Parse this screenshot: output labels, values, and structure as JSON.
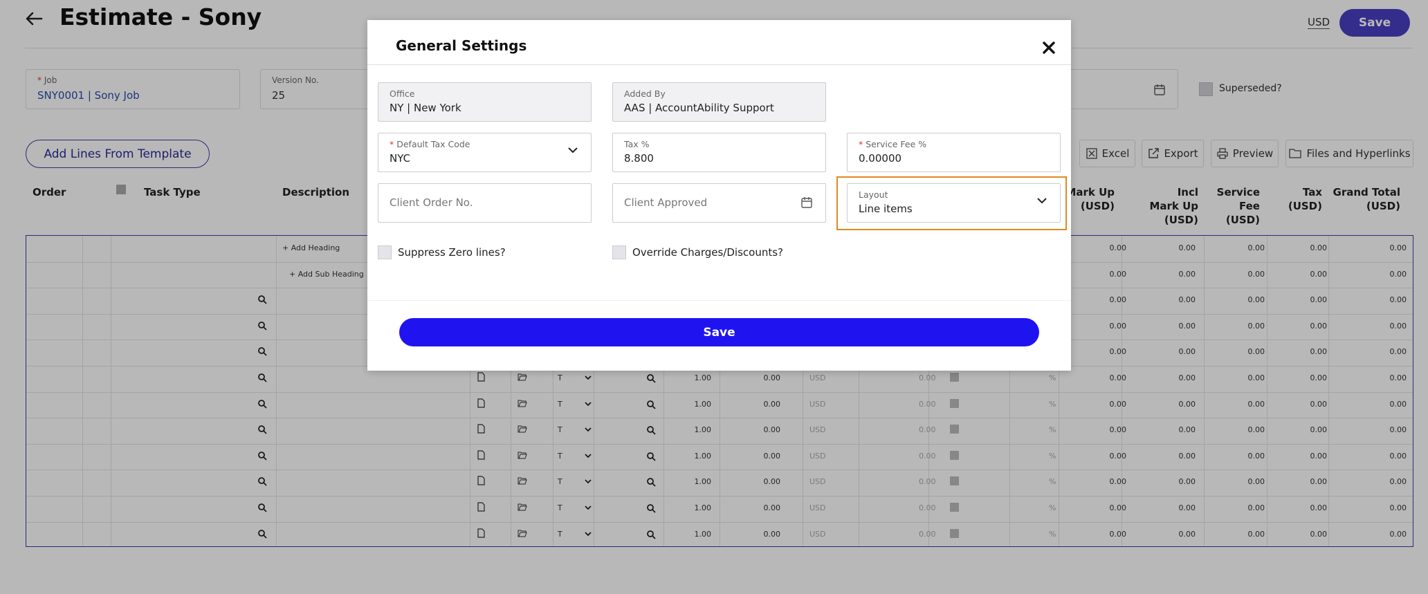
{
  "header": {
    "title": "Estimate - Sony",
    "currency": "USD",
    "save_label": "Save"
  },
  "form": {
    "job": {
      "label": "Job",
      "value": "SNY0001 | Sony Job"
    },
    "version": {
      "label": "Version No.",
      "value": "25"
    },
    "superseded_label": "Superseded?"
  },
  "toolbar": {
    "add_lines_label": "Add Lines From Template",
    "excel_label": "Excel",
    "export_label": "Export",
    "preview_label": "Preview",
    "files_label": "Files and Hyperlinks"
  },
  "columns": {
    "order": "Order",
    "task_type": "Task Type",
    "description": "Description",
    "markup_1": "Mark Up",
    "markup_2": "(USD)",
    "incl_1": "Incl",
    "incl_2": "Mark Up",
    "incl_3": "(USD)",
    "fee_1": "Service",
    "fee_2": "Fee",
    "fee_3": "(USD)",
    "tax_1": "Tax",
    "tax_2": "(USD)",
    "grand_1": "Grand Total",
    "grand_2": "(USD)"
  },
  "grid": {
    "add_heading": "+ Add Heading",
    "add_sub_heading": "+ Add Sub Heading",
    "zero": "0.00",
    "qty": "1.00",
    "type_code": "T",
    "currency": "USD",
    "percent": "%"
  },
  "modal": {
    "title": "General Settings",
    "office": {
      "label": "Office",
      "value": "NY | New York"
    },
    "added_by": {
      "label": "Added By",
      "value": "AAS | AccountAbility Support"
    },
    "tax_code": {
      "label": "Default Tax Code",
      "value": "NYC"
    },
    "tax_pct": {
      "label": "Tax %",
      "value": "8.800"
    },
    "service_fee": {
      "label": "Service Fee %",
      "value": "0.00000"
    },
    "client_order": {
      "placeholder": "Client Order No."
    },
    "client_approved": {
      "placeholder": "Client Approved"
    },
    "layout": {
      "label": "Layout",
      "value": "Line items"
    },
    "suppress_label": "Suppress Zero lines?",
    "override_label": "Override Charges/Discounts?",
    "save_label": "Save"
  },
  "icons": [
    "back-arrow-icon",
    "calendar-icon",
    "excel-icon",
    "export-icon",
    "print-icon",
    "folder-icon",
    "search-icon",
    "document-icon",
    "folder-open-icon",
    "chevron-down-icon",
    "close-icon"
  ]
}
